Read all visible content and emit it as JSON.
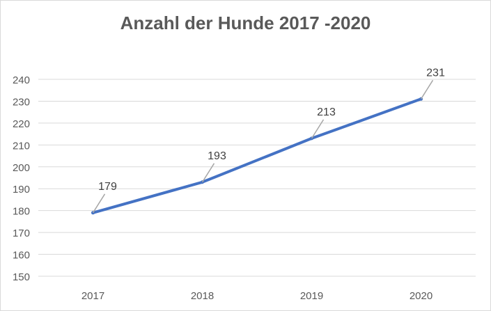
{
  "chart_data": {
    "type": "line",
    "title": "Anzahl der Hunde 2017 -2020",
    "xlabel": "",
    "ylabel": "",
    "categories": [
      "2017",
      "2018",
      "2019",
      "2020"
    ],
    "series": [
      {
        "values": [
          179,
          193,
          213,
          231
        ],
        "color": "#4472c4"
      }
    ],
    "data_labels": [
      "179",
      "193",
      "213",
      "231"
    ],
    "ylim": [
      150,
      240
    ],
    "y_ticks": [
      "150",
      "160",
      "170",
      "180",
      "190",
      "200",
      "210",
      "220",
      "230",
      "240"
    ],
    "grid": true,
    "legend": "none",
    "colors": {
      "gridline": "#d9d9d9",
      "axis_text": "#595959",
      "label_text": "#404040",
      "leader": "#a6a6a6"
    }
  }
}
